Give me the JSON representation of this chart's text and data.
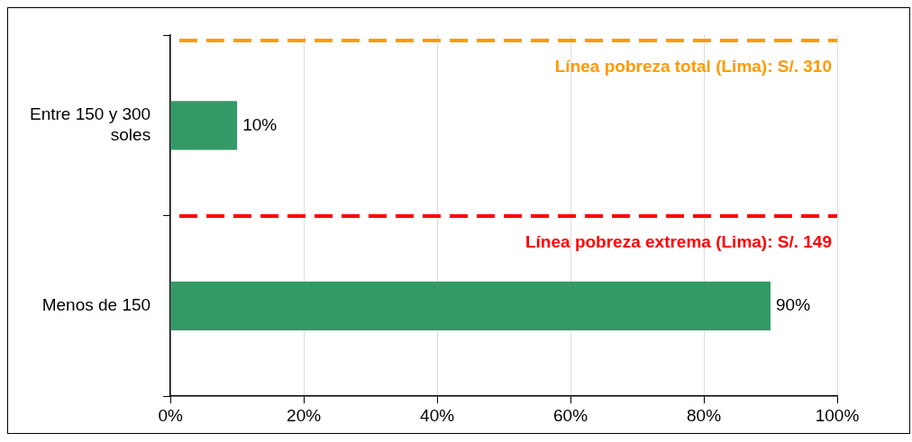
{
  "chart_data": {
    "type": "bar",
    "orientation": "horizontal",
    "categories": [
      "Entre 150 y 300 soles",
      "Menos de 150"
    ],
    "values": [
      10,
      90
    ],
    "color": "#339966",
    "value_labels": [
      "10%",
      "90%"
    ],
    "xlim": [
      0,
      100
    ],
    "xticks": [
      {
        "value": 0,
        "label": "0%"
      },
      {
        "value": 20,
        "label": "20%"
      },
      {
        "value": 40,
        "label": "40%"
      },
      {
        "value": 60,
        "label": "60%"
      },
      {
        "value": 80,
        "label": "80%"
      },
      {
        "value": 100,
        "label": "100%"
      }
    ],
    "grid": "x",
    "legend": false,
    "annotations": [
      "Línea pobreza total (Lima): S/. 310",
      "Línea pobreza extrema (Lima): S/. 149"
    ]
  }
}
